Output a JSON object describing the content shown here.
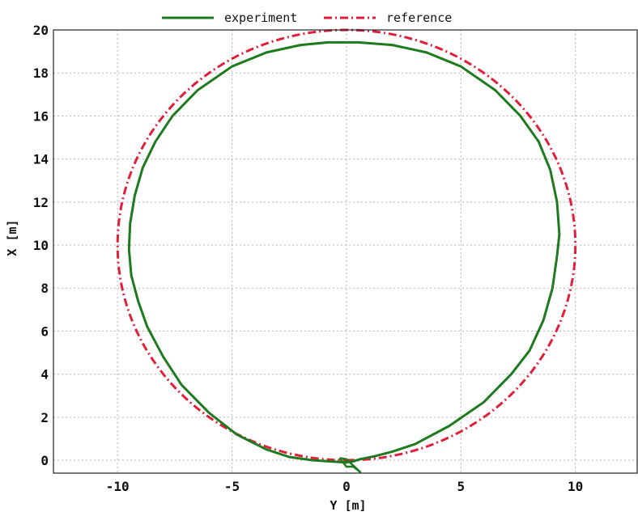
{
  "chart_data": {
    "type": "line",
    "xlabel": "Y [m]",
    "ylabel": "X [m]",
    "xlim": [
      -12.8,
      12.7
    ],
    "ylim": [
      -0.6,
      20
    ],
    "xticks": [
      -10,
      -5,
      0,
      5,
      10
    ],
    "yticks": [
      0,
      2,
      4,
      6,
      8,
      10,
      12,
      14,
      16,
      18,
      20
    ],
    "grid": true,
    "legend": "top-center",
    "series": [
      {
        "name": "experiment",
        "color": "#1e7a1e",
        "style": "solid",
        "points": [
          [
            0.5,
            19.42
          ],
          [
            2.0,
            19.3
          ],
          [
            3.5,
            18.95
          ],
          [
            5.0,
            18.3
          ],
          [
            6.5,
            17.2
          ],
          [
            7.6,
            16.0
          ],
          [
            8.4,
            14.8
          ],
          [
            8.9,
            13.5
          ],
          [
            9.2,
            12.0
          ],
          [
            9.3,
            10.5
          ],
          [
            9.2,
            9.5
          ],
          [
            9.0,
            8.0
          ],
          [
            8.6,
            6.5
          ],
          [
            8.0,
            5.1
          ],
          [
            7.2,
            4.0
          ],
          [
            6.0,
            2.7
          ],
          [
            4.5,
            1.6
          ],
          [
            3.0,
            0.75
          ],
          [
            2.0,
            0.4
          ],
          [
            1.2,
            0.18
          ],
          [
            0.6,
            0.05
          ],
          [
            0.3,
            -0.05
          ],
          [
            0.0,
            -0.1
          ],
          [
            -0.8,
            -0.05
          ],
          [
            -1.5,
            0.0
          ],
          [
            -2.5,
            0.15
          ],
          [
            -3.5,
            0.5
          ],
          [
            -4.8,
            1.2
          ],
          [
            -6.0,
            2.2
          ],
          [
            -7.2,
            3.5
          ],
          [
            -8.0,
            4.8
          ],
          [
            -8.7,
            6.2
          ],
          [
            -9.1,
            7.4
          ],
          [
            -9.4,
            8.6
          ],
          [
            -9.5,
            9.8
          ],
          [
            -9.45,
            11.0
          ],
          [
            -9.25,
            12.3
          ],
          [
            -8.9,
            13.6
          ],
          [
            -8.35,
            14.8
          ],
          [
            -7.6,
            16.0
          ],
          [
            -6.5,
            17.2
          ],
          [
            -5.0,
            18.3
          ],
          [
            -3.5,
            18.95
          ],
          [
            -2.0,
            19.3
          ],
          [
            -0.8,
            19.42
          ],
          [
            0.5,
            19.42
          ]
        ],
        "start_marker": [
          [
            -0.3,
            0.1
          ],
          [
            0.0,
            -0.3
          ],
          [
            0.3,
            -0.3
          ],
          [
            0.6,
            -0.55
          ],
          [
            0.4,
            -0.35
          ],
          [
            0.0,
            0.05
          ],
          [
            -0.3,
            0.1
          ]
        ]
      },
      {
        "name": "reference",
        "color": "#e0203a",
        "style": "dashdot",
        "shape": "circle",
        "center": [
          0,
          10
        ],
        "radius": 10
      }
    ]
  }
}
